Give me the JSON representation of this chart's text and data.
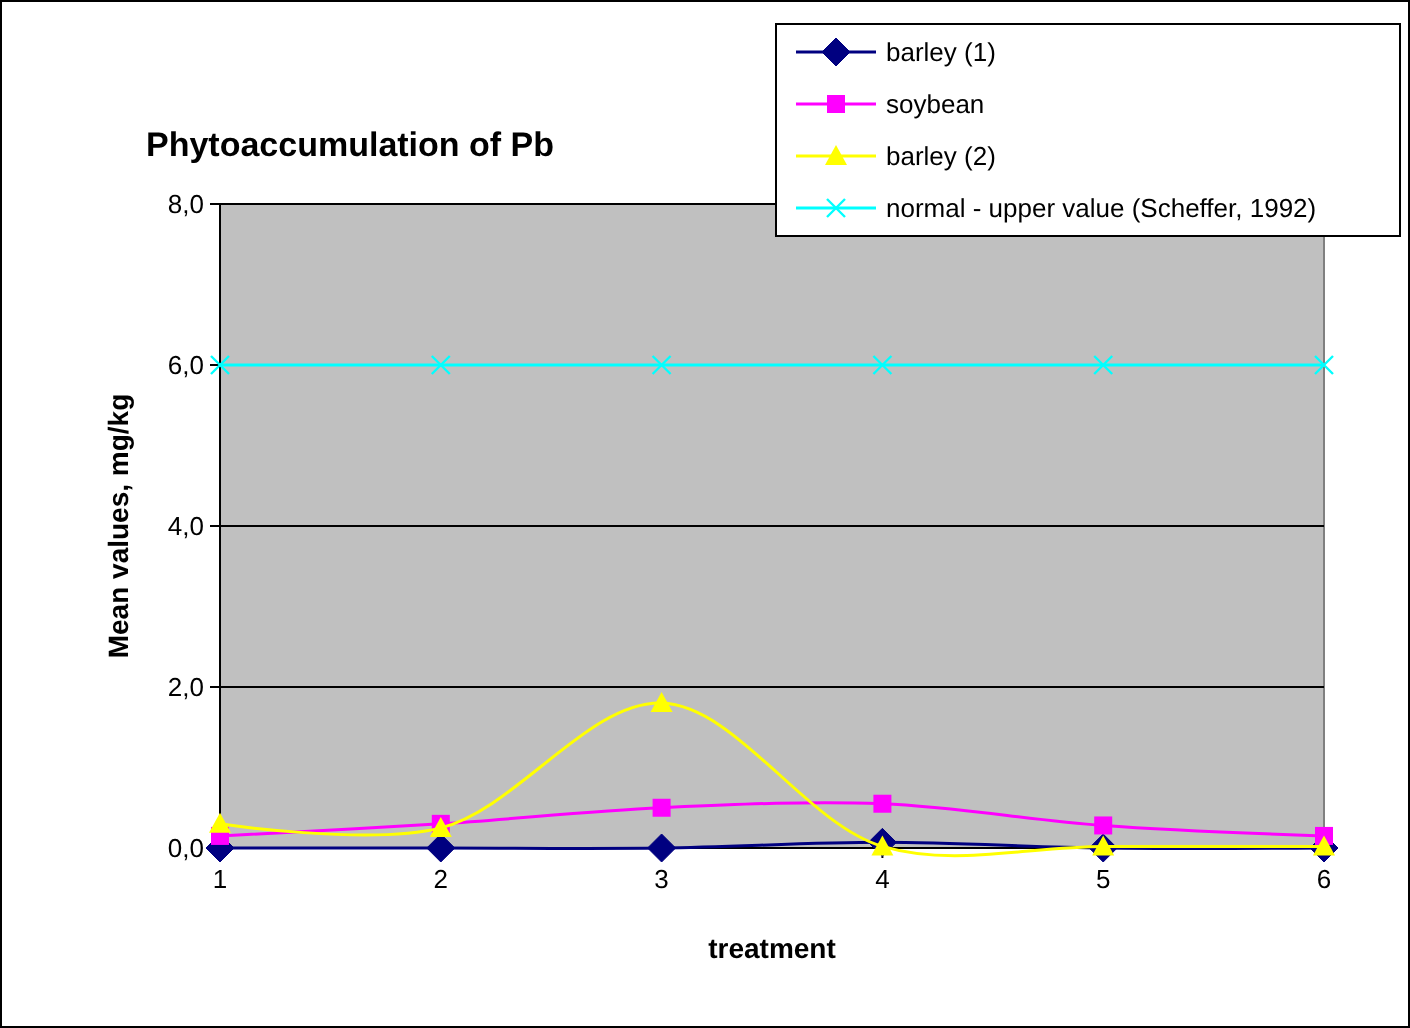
{
  "chart_data": {
    "type": "line",
    "title": "Phytoaccumulation of Pb",
    "xlabel": "treatment",
    "ylabel": "Mean values, mg/kg",
    "categories": [
      "1",
      "2",
      "3",
      "4",
      "5",
      "6"
    ],
    "series": [
      {
        "name": "barley (1)",
        "color": "#000080",
        "marker": "diamond",
        "values": [
          0,
          0,
          0,
          0.07,
          0,
          0
        ]
      },
      {
        "name": "soybean",
        "color": "#ff00ff",
        "marker": "square",
        "values": [
          0.15,
          0.3,
          0.5,
          0.55,
          0.28,
          0.15
        ]
      },
      {
        "name": "barley (2)",
        "color": "#ffff00",
        "marker": "triangle",
        "values": [
          0.3,
          0.25,
          1.8,
          0.02,
          0.02,
          0.02
        ]
      },
      {
        "name": "normal - upper value (Scheffer, 1992)",
        "color": "#00ffff",
        "marker": "cross",
        "values": [
          6,
          6,
          6,
          6,
          6,
          6
        ]
      }
    ],
    "ylim": [
      0,
      8
    ],
    "yticks": [
      {
        "value": 0,
        "label": "0,0"
      },
      {
        "value": 2,
        "label": "2,0"
      },
      {
        "value": 4,
        "label": "4,0"
      },
      {
        "value": 6,
        "label": "6,0"
      },
      {
        "value": 8,
        "label": "8,0"
      }
    ],
    "grid": "y",
    "legend": "top right"
  }
}
